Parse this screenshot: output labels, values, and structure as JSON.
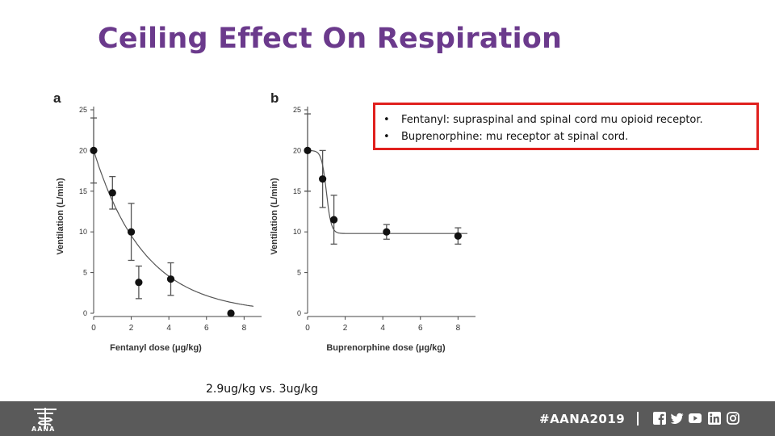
{
  "slide": {
    "title": "Ceiling Effect On Respiration",
    "dose_note": "2.9ug/kg vs. 3ug/kg"
  },
  "callout": {
    "items": [
      "Fentanyl: supraspinal and spinal cord mu opioid receptor.",
      "Buprenorphine: mu receptor at spinal cord."
    ],
    "border_color": "#e0201e"
  },
  "footer": {
    "logo_text": "AANA",
    "hashtag": "#AANA2019",
    "social_icons": [
      "facebook-icon",
      "twitter-icon",
      "youtube-icon",
      "linkedin-icon",
      "instagram-icon"
    ],
    "background": "#5a5a5a"
  },
  "chart_data": [
    {
      "type": "scatter",
      "panel": "a",
      "xlabel": "Fentanyl dose (μg/kg)",
      "ylabel": "Ventilation (L/min)",
      "xlim": [
        0,
        8.5
      ],
      "ylim": [
        0,
        25
      ],
      "xticks": [
        0,
        2,
        4,
        6,
        8
      ],
      "yticks": [
        0,
        5,
        10,
        15,
        20,
        25
      ],
      "points": [
        {
          "x": 0,
          "y": 20,
          "err_low": 16,
          "err_high": 24
        },
        {
          "x": 1,
          "y": 14.8,
          "err_low": 12.8,
          "err_high": 16.8
        },
        {
          "x": 2,
          "y": 10,
          "err_low": 6.5,
          "err_high": 13.5
        },
        {
          "x": 2.4,
          "y": 3.8,
          "err_low": 1.8,
          "err_high": 5.8
        },
        {
          "x": 4.1,
          "y": 4.2,
          "err_low": 2.2,
          "err_high": 6.2
        },
        {
          "x": 7.3,
          "y": 0,
          "err_low": 0,
          "err_high": 0
        }
      ],
      "fit": "exponential decay",
      "fit_params": {
        "A": 20,
        "k": 0.37,
        "c": 0
      }
    },
    {
      "type": "scatter",
      "panel": "b",
      "xlabel": "Buprenorphine dose (μg/kg)",
      "ylabel": "Ventilation (L/min)",
      "xlim": [
        0,
        8.5
      ],
      "ylim": [
        0,
        25
      ],
      "xticks": [
        0,
        2,
        4,
        6,
        8
      ],
      "yticks": [
        0,
        5,
        10,
        15,
        20,
        25
      ],
      "points": [
        {
          "x": 0,
          "y": 20,
          "err_low": 15,
          "err_high": 24.5
        },
        {
          "x": 0.8,
          "y": 16.5,
          "err_low": 13,
          "err_high": 20
        },
        {
          "x": 1.4,
          "y": 11.5,
          "err_low": 8.5,
          "err_high": 14.5
        },
        {
          "x": 4.2,
          "y": 10,
          "err_low": 9.1,
          "err_high": 10.9
        },
        {
          "x": 8,
          "y": 9.5,
          "err_low": 8.5,
          "err_high": 10.5
        }
      ],
      "fit": "sigmoid to plateau",
      "fit_params": {
        "top": 20,
        "bottom": 9.8,
        "mid": 1.0,
        "slope": 0.3
      }
    }
  ]
}
